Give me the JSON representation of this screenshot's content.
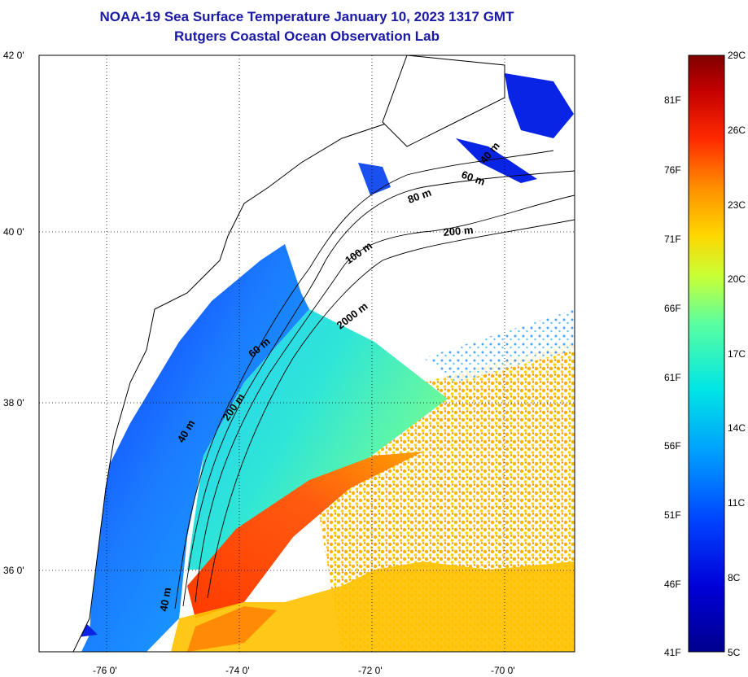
{
  "title": "NOAA-19 Sea Surface Temperature January 10, 2023 1317 GMT",
  "subtitle": "Rutgers Coastal Ocean Observation Lab",
  "map": {
    "lat_labels": [
      "42 0'",
      "40 0'",
      "38 0'",
      "36 0'"
    ],
    "lon_labels": [
      "-76 0'",
      "-74 0'",
      "-72 0'",
      "-70 0'"
    ],
    "lon_range": [
      -77.0,
      -69.0
    ],
    "lat_range": [
      35.2,
      42.0
    ],
    "grid": "dotted",
    "contour_labels": [
      "40 m",
      "60 m",
      "80 m",
      "200 m",
      "100 m",
      "2000 m",
      "60 m",
      "200 m",
      "40 m",
      "40 m"
    ]
  },
  "colorbar": {
    "celsius_labels": [
      "29C",
      "26C",
      "23C",
      "20C",
      "17C",
      "14C",
      "11C",
      "8C",
      "5C"
    ],
    "fahrenheit_labels": [
      "81F",
      "76F",
      "71F",
      "66F",
      "61F",
      "56F",
      "51F",
      "46F",
      "41F"
    ],
    "colors": [
      "#7f0000",
      "#c40000",
      "#ff2a00",
      "#ff8c00",
      "#ffd600",
      "#c8ff36",
      "#5affa0",
      "#00e5e5",
      "#009cff",
      "#0044ff",
      "#0000d8",
      "#00008f"
    ]
  },
  "colors": {
    "title": "#1a1aa6",
    "land": "#ffffff",
    "coast": "#000000"
  }
}
